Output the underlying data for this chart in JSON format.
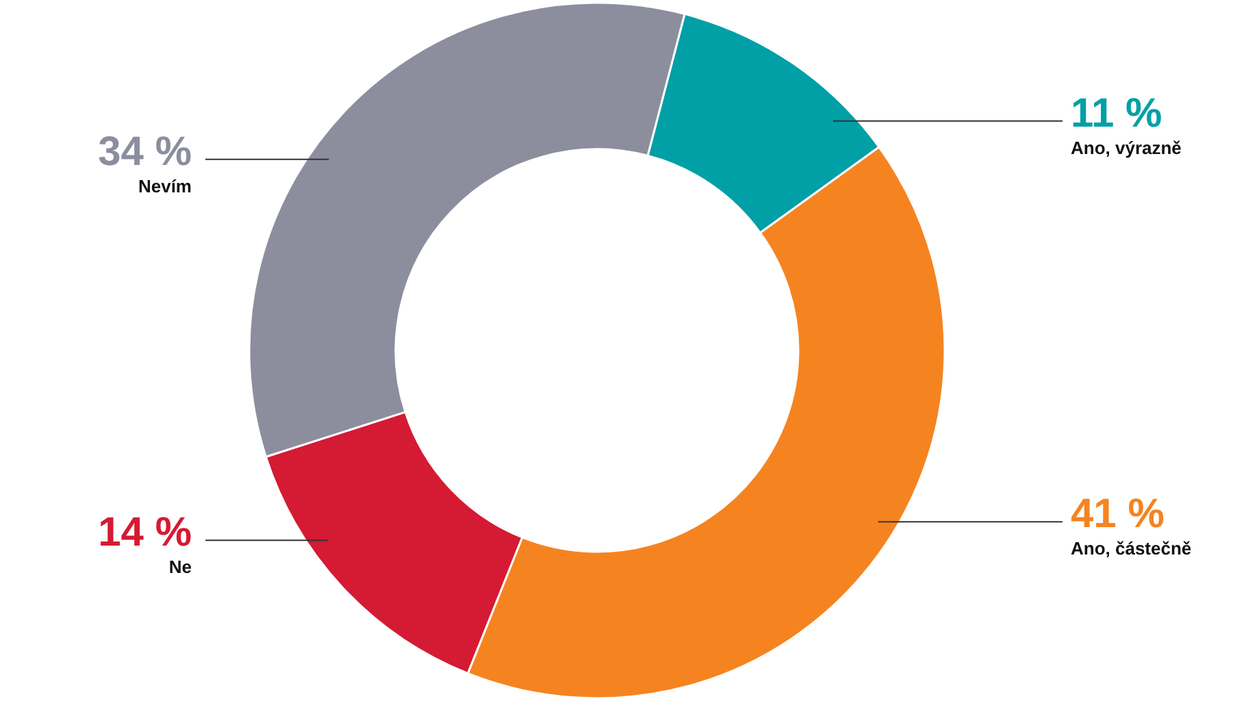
{
  "chart_data": {
    "type": "donut",
    "categories": [
      "Ano, výrazně",
      "Ano, částečně",
      "Ne",
      "Nevím"
    ],
    "values": [
      11,
      41,
      14,
      34
    ],
    "value_labels": [
      "11 %",
      "41 %",
      "14 %",
      "34 %"
    ],
    "colors": [
      "#00a0a6",
      "#f58420",
      "#d51a33",
      "#8c8e9e"
    ]
  }
}
